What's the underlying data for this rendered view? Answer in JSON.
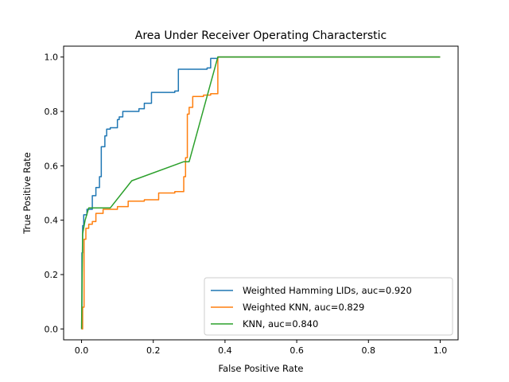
{
  "chart_data": {
    "type": "line",
    "title": "Area Under Receiver Operating Characterstic",
    "xlabel": "False Positive Rate",
    "ylabel": "True Positive Rate",
    "xlim": [
      -0.05,
      1.05
    ],
    "ylim": [
      -0.04,
      1.04
    ],
    "xticks": [
      0.0,
      0.2,
      0.4,
      0.6,
      0.8,
      1.0
    ],
    "yticks": [
      0.0,
      0.2,
      0.4,
      0.6,
      0.8,
      1.0
    ],
    "xtick_labels": [
      "0.0",
      "0.2",
      "0.4",
      "0.6",
      "0.8",
      "1.0"
    ],
    "ytick_labels": [
      "0.0",
      "0.2",
      "0.4",
      "0.6",
      "0.8",
      "1.0"
    ],
    "grid": false,
    "legend_position": "lower-right",
    "series": [
      {
        "name": "Weighted Hamming LIDs, auc=0.920",
        "color": "#1f77b4",
        "x": [
          0.0,
          0.001,
          0.001,
          0.003,
          0.003,
          0.006,
          0.006,
          0.015,
          0.015,
          0.03,
          0.03,
          0.04,
          0.04,
          0.05,
          0.05,
          0.055,
          0.055,
          0.065,
          0.065,
          0.07,
          0.07,
          0.08,
          0.08,
          0.1,
          0.1,
          0.105,
          0.105,
          0.115,
          0.115,
          0.16,
          0.16,
          0.175,
          0.175,
          0.195,
          0.195,
          0.26,
          0.26,
          0.27,
          0.27,
          0.35,
          0.35,
          0.36,
          0.36,
          0.38,
          0.38,
          1.0
        ],
        "y": [
          0.0,
          0.0,
          0.28,
          0.28,
          0.38,
          0.38,
          0.42,
          0.42,
          0.44,
          0.44,
          0.49,
          0.49,
          0.52,
          0.52,
          0.56,
          0.56,
          0.67,
          0.67,
          0.71,
          0.71,
          0.735,
          0.735,
          0.74,
          0.74,
          0.77,
          0.77,
          0.78,
          0.78,
          0.8,
          0.8,
          0.81,
          0.81,
          0.83,
          0.83,
          0.87,
          0.87,
          0.875,
          0.875,
          0.955,
          0.955,
          0.96,
          0.96,
          0.995,
          0.995,
          1.0,
          1.0
        ]
      },
      {
        "name": "Weighted KNN, auc=0.829",
        "color": "#ff7f0e",
        "x": [
          0.0,
          0.003,
          0.003,
          0.007,
          0.007,
          0.012,
          0.012,
          0.02,
          0.02,
          0.03,
          0.03,
          0.04,
          0.04,
          0.06,
          0.06,
          0.1,
          0.1,
          0.13,
          0.13,
          0.175,
          0.175,
          0.215,
          0.215,
          0.26,
          0.26,
          0.285,
          0.285,
          0.29,
          0.29,
          0.295,
          0.295,
          0.3,
          0.3,
          0.31,
          0.31,
          0.34,
          0.34,
          0.36,
          0.36,
          0.38,
          0.38,
          1.0
        ],
        "y": [
          0.0,
          0.0,
          0.08,
          0.08,
          0.33,
          0.33,
          0.37,
          0.37,
          0.385,
          0.385,
          0.395,
          0.395,
          0.425,
          0.425,
          0.44,
          0.44,
          0.45,
          0.45,
          0.47,
          0.47,
          0.475,
          0.475,
          0.5,
          0.5,
          0.505,
          0.505,
          0.56,
          0.56,
          0.63,
          0.63,
          0.79,
          0.79,
          0.815,
          0.815,
          0.855,
          0.855,
          0.86,
          0.86,
          0.865,
          0.865,
          1.0,
          1.0
        ]
      },
      {
        "name": "KNN, auc=0.840",
        "color": "#2ca02c",
        "x": [
          0.0,
          0.003,
          0.01,
          0.02,
          0.08,
          0.14,
          0.285,
          0.3,
          0.38,
          1.0
        ],
        "y": [
          0.0,
          0.35,
          0.4,
          0.445,
          0.445,
          0.545,
          0.615,
          0.615,
          1.0,
          1.0
        ]
      }
    ]
  }
}
